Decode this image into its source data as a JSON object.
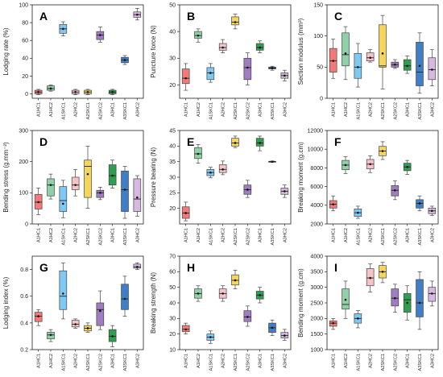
{
  "figure": {
    "categories": [
      "A1HC1",
      "A1HC2",
      "A1SKC1",
      "A2HC2",
      "A2SKC1",
      "A2SKC2",
      "A3HC1",
      "A3SKC1",
      "A3HC2"
    ],
    "colors": [
      "#f47a7a",
      "#8fd1a6",
      "#7fcaf5",
      "#f6c3c8",
      "#f5d65a",
      "#a07cc0",
      "#2f9e4f",
      "#3f7fc8",
      "#d7b8e0"
    ]
  },
  "chart_data": [
    {
      "panel": "A",
      "type": "box",
      "ylabel": "Lodging rate (%)",
      "ylim": [
        -5,
        100
      ],
      "yticks": [
        0,
        20,
        40,
        60,
        80,
        100
      ],
      "boxes": [
        {
          "min": -1,
          "q1": 0,
          "median": 2,
          "q3": 4,
          "max": 5,
          "mean": 2
        },
        {
          "min": 3,
          "q1": 4,
          "median": 6,
          "q3": 9,
          "max": 10,
          "mean": 6
        },
        {
          "min": 65,
          "q1": 68,
          "median": 73,
          "q3": 78,
          "max": 81,
          "mean": 73
        },
        {
          "min": -1,
          "q1": 0,
          "median": 2,
          "q3": 4,
          "max": 5,
          "mean": 2
        },
        {
          "min": -1,
          "q1": 0,
          "median": 2,
          "q3": 4,
          "max": 5,
          "mean": 2
        },
        {
          "min": 58,
          "q1": 61,
          "median": 66,
          "q3": 70,
          "max": 75,
          "mean": 66
        },
        {
          "min": -1,
          "q1": 0,
          "median": 2,
          "q3": 4,
          "max": 5,
          "mean": 2
        },
        {
          "min": 33,
          "q1": 35,
          "median": 38,
          "q3": 41,
          "max": 43,
          "mean": 38
        },
        {
          "min": 83,
          "q1": 86,
          "median": 89,
          "q3": 92,
          "max": 96,
          "mean": 89
        }
      ]
    },
    {
      "panel": "B",
      "type": "box",
      "ylabel": "Puncture force (N)",
      "ylim": [
        15,
        50
      ],
      "yticks": [
        20,
        30,
        40,
        50
      ],
      "boxes": [
        {
          "min": 18,
          "q1": 20.5,
          "median": 22.5,
          "q3": 26,
          "max": 28,
          "mean": 22.5
        },
        {
          "min": 36,
          "q1": 37.5,
          "median": 38.5,
          "q3": 40,
          "max": 41,
          "mean": 38.5
        },
        {
          "min": 21,
          "q1": 22,
          "median": 24.5,
          "q3": 26.5,
          "max": 28,
          "mean": 24.5
        },
        {
          "min": 32,
          "q1": 33,
          "median": 34,
          "q3": 35.5,
          "max": 37,
          "mean": 34
        },
        {
          "min": 41,
          "q1": 42.5,
          "median": 43.5,
          "q3": 45.5,
          "max": 46.5,
          "mean": 43.5
        },
        {
          "min": 20,
          "q1": 22,
          "median": 26.5,
          "q3": 30,
          "max": 32,
          "mean": 26.5
        },
        {
          "min": 32,
          "q1": 33,
          "median": 34,
          "q3": 35.5,
          "max": 36.5,
          "mean": 34
        },
        {
          "min": 25.5,
          "q1": 26,
          "median": 26.3,
          "q3": 26.7,
          "max": 27,
          "mean": 26.3
        },
        {
          "min": 21.5,
          "q1": 22.5,
          "median": 23.5,
          "q3": 24.5,
          "max": 25.5,
          "mean": 23.5
        }
      ]
    },
    {
      "panel": "C",
      "type": "box",
      "ylabel": "Section modulus (mm³)",
      "ylim": [
        0,
        150
      ],
      "yticks": [
        0,
        50,
        100,
        150
      ],
      "boxes": [
        {
          "min": 32,
          "q1": 42,
          "median": 60,
          "q3": 80,
          "max": 95,
          "mean": 60
        },
        {
          "min": 30,
          "q1": 52,
          "median": 70,
          "q3": 105,
          "max": 115,
          "mean": 72
        },
        {
          "min": 18,
          "q1": 32,
          "median": 50,
          "q3": 72,
          "max": 88,
          "mean": 50
        },
        {
          "min": 58,
          "q1": 60,
          "median": 65,
          "q3": 73,
          "max": 78,
          "mean": 65
        },
        {
          "min": 15,
          "q1": 50,
          "median": 52,
          "q3": 118,
          "max": 133,
          "mean": 72
        },
        {
          "min": 48,
          "q1": 50,
          "median": 54,
          "q3": 58,
          "max": 62,
          "mean": 54
        },
        {
          "min": 40,
          "q1": 45,
          "median": 52,
          "q3": 62,
          "max": 68,
          "mean": 52
        },
        {
          "min": 8,
          "q1": 20,
          "median": 42,
          "q3": 90,
          "max": 105,
          "mean": 52
        },
        {
          "min": 20,
          "q1": 30,
          "median": 46,
          "q3": 65,
          "max": 78,
          "mean": 46
        }
      ]
    },
    {
      "panel": "D",
      "type": "box",
      "ylabel": "Bending stress (g.mm⁻²)",
      "ylim": [
        0,
        300
      ],
      "yticks": [
        0,
        100,
        200,
        300
      ],
      "boxes": [
        {
          "min": 30,
          "q1": 48,
          "median": 70,
          "q3": 95,
          "max": 115,
          "mean": 70
        },
        {
          "min": 80,
          "q1": 90,
          "median": 125,
          "q3": 145,
          "max": 160,
          "mean": 125
        },
        {
          "min": 20,
          "q1": 40,
          "median": 75,
          "q3": 120,
          "max": 140,
          "mean": 65
        },
        {
          "min": 90,
          "q1": 110,
          "median": 125,
          "q3": 150,
          "max": 175,
          "mean": 125
        },
        {
          "min": 50,
          "q1": 85,
          "median": 185,
          "q3": 205,
          "max": 250,
          "mean": 160
        },
        {
          "min": 78,
          "q1": 85,
          "median": 100,
          "q3": 108,
          "max": 118,
          "mean": 100
        },
        {
          "min": 115,
          "q1": 125,
          "median": 155,
          "q3": 190,
          "max": 205,
          "mean": 155
        },
        {
          "min": 18,
          "q1": 40,
          "median": 110,
          "q3": 170,
          "max": 185,
          "mean": 110
        },
        {
          "min": 25,
          "q1": 40,
          "median": 80,
          "q3": 145,
          "max": 155,
          "mean": 85
        }
      ]
    },
    {
      "panel": "E",
      "type": "box",
      "ylabel": "Pressure bearing (N)",
      "ylim": [
        15,
        45
      ],
      "yticks": [
        20,
        25,
        30,
        35,
        40,
        45
      ],
      "boxes": [
        {
          "min": 16,
          "q1": 16.8,
          "median": 18.5,
          "q3": 20.5,
          "max": 22,
          "mean": 18.5
        },
        {
          "min": 34.5,
          "q1": 36,
          "median": 37.5,
          "q3": 39.5,
          "max": 40.5,
          "mean": 37.5
        },
        {
          "min": 29.8,
          "q1": 30.5,
          "median": 31.5,
          "q3": 32.5,
          "max": 33.2,
          "mean": 31.5
        },
        {
          "min": 30.8,
          "q1": 31.5,
          "median": 32.5,
          "q3": 34,
          "max": 35.2,
          "mean": 32.5
        },
        {
          "min": 39.5,
          "q1": 40,
          "median": 41,
          "q3": 42.5,
          "max": 43.2,
          "mean": 41
        },
        {
          "min": 23.5,
          "q1": 24.5,
          "median": 26,
          "q3": 27.5,
          "max": 29,
          "mean": 26
        },
        {
          "min": 38.5,
          "q1": 40,
          "median": 41,
          "q3": 42.5,
          "max": 43.2,
          "mean": 41
        },
        {
          "min": 34.8,
          "q1": 34.9,
          "median": 35,
          "q3": 35.1,
          "max": 35.2,
          "mean": 35
        },
        {
          "min": 23.5,
          "q1": 24.5,
          "median": 25.5,
          "q3": 26.5,
          "max": 27.5,
          "mean": 25.5
        }
      ]
    },
    {
      "panel": "F",
      "type": "box",
      "ylabel": "Breaking moment (g.cm)",
      "ylim": [
        2000,
        12000
      ],
      "yticks": [
        2000,
        4000,
        6000,
        8000,
        10000,
        12000
      ],
      "boxes": [
        {
          "min": 3400,
          "q1": 3700,
          "median": 4100,
          "q3": 4500,
          "max": 5000,
          "mean": 4100
        },
        {
          "min": 7400,
          "q1": 7800,
          "median": 8300,
          "q3": 8800,
          "max": 9200,
          "mean": 8300
        },
        {
          "min": 2600,
          "q1": 2800,
          "median": 3200,
          "q3": 3600,
          "max": 3900,
          "mean": 3200
        },
        {
          "min": 7500,
          "q1": 7900,
          "median": 8400,
          "q3": 8900,
          "max": 9300,
          "mean": 8400
        },
        {
          "min": 8900,
          "q1": 9300,
          "median": 9800,
          "q3": 10300,
          "max": 10800,
          "mean": 9800
        },
        {
          "min": 4600,
          "q1": 5000,
          "median": 5600,
          "q3": 6100,
          "max": 6600,
          "mean": 5600
        },
        {
          "min": 7300,
          "q1": 7700,
          "median": 8100,
          "q3": 8500,
          "max": 8800,
          "mean": 8100
        },
        {
          "min": 3400,
          "q1": 3700,
          "median": 4200,
          "q3": 4600,
          "max": 5000,
          "mean": 4200
        },
        {
          "min": 2900,
          "q1": 3100,
          "median": 3400,
          "q3": 3700,
          "max": 3900,
          "mean": 3400
        }
      ]
    },
    {
      "panel": "G",
      "type": "box",
      "ylabel": "Lodging index (%)",
      "ylim": [
        0.2,
        0.9
      ],
      "yticks": [
        0.2,
        0.4,
        0.6,
        0.8
      ],
      "boxes": [
        {
          "min": 0.38,
          "q1": 0.41,
          "median": 0.45,
          "q3": 0.48,
          "max": 0.5,
          "mean": 0.45
        },
        {
          "min": 0.26,
          "q1": 0.28,
          "median": 0.31,
          "q3": 0.33,
          "max": 0.35,
          "mean": 0.31
        },
        {
          "min": 0.43,
          "q1": 0.5,
          "median": 0.6,
          "q3": 0.79,
          "max": 0.85,
          "mean": 0.62
        },
        {
          "min": 0.36,
          "q1": 0.37,
          "median": 0.39,
          "q3": 0.42,
          "max": 0.43,
          "mean": 0.39
        },
        {
          "min": 0.33,
          "q1": 0.34,
          "median": 0.36,
          "q3": 0.38,
          "max": 0.4,
          "mean": 0.36
        },
        {
          "min": 0.35,
          "q1": 0.38,
          "median": 0.5,
          "q3": 0.55,
          "max": 0.64,
          "mean": 0.49
        },
        {
          "min": 0.22,
          "q1": 0.26,
          "median": 0.3,
          "q3": 0.35,
          "max": 0.38,
          "mean": 0.3
        },
        {
          "min": 0.45,
          "q1": 0.5,
          "median": 0.58,
          "q3": 0.69,
          "max": 0.75,
          "mean": 0.58
        },
        {
          "min": 0.8,
          "q1": 0.81,
          "median": 0.82,
          "q3": 0.84,
          "max": 0.85,
          "mean": 0.82
        }
      ]
    },
    {
      "panel": "H",
      "type": "box",
      "ylabel": "Breaking strength (N)",
      "ylim": [
        10,
        70
      ],
      "yticks": [
        10,
        20,
        30,
        40,
        50,
        60,
        70
      ],
      "boxes": [
        {
          "min": 20,
          "q1": 21.5,
          "median": 23,
          "q3": 25.5,
          "max": 27,
          "mean": 23
        },
        {
          "min": 41,
          "q1": 43,
          "median": 46,
          "q3": 49,
          "max": 51,
          "mean": 46
        },
        {
          "min": 14,
          "q1": 16,
          "median": 18,
          "q3": 20,
          "max": 22,
          "mean": 18
        },
        {
          "min": 41,
          "q1": 43,
          "median": 46,
          "q3": 49,
          "max": 51,
          "mean": 46
        },
        {
          "min": 49,
          "q1": 51.5,
          "median": 54.5,
          "q3": 58,
          "max": 61,
          "mean": 54.5
        },
        {
          "min": 25,
          "q1": 28,
          "median": 31,
          "q3": 35,
          "max": 38,
          "mean": 31
        },
        {
          "min": 40,
          "q1": 42.5,
          "median": 45,
          "q3": 47.5,
          "max": 50,
          "mean": 45
        },
        {
          "min": 19,
          "q1": 21,
          "median": 24,
          "q3": 27,
          "max": 29,
          "mean": 24
        },
        {
          "min": 16,
          "q1": 17.5,
          "median": 19,
          "q3": 21,
          "max": 23,
          "mean": 19
        }
      ]
    },
    {
      "panel": "I",
      "type": "box",
      "ylabel": "Bending moment (g.cm)",
      "ylim": [
        1000,
        4000
      ],
      "yticks": [
        1000,
        1500,
        2000,
        2500,
        3000,
        3500,
        4000
      ],
      "boxes": [
        {
          "min": 1650,
          "q1": 1750,
          "median": 1850,
          "q3": 1920,
          "max": 2000,
          "mean": 1850
        },
        {
          "min": 2000,
          "q1": 2300,
          "median": 2450,
          "q3": 2950,
          "max": 3200,
          "mean": 2600
        },
        {
          "min": 1700,
          "q1": 1850,
          "median": 2000,
          "q3": 2150,
          "max": 2250,
          "mean": 2000
        },
        {
          "min": 2850,
          "q1": 3050,
          "median": 3300,
          "q3": 3600,
          "max": 3750,
          "mean": 3300
        },
        {
          "min": 3150,
          "q1": 3300,
          "median": 3500,
          "q3": 3700,
          "max": 3800,
          "mean": 3500
        },
        {
          "min": 2200,
          "q1": 2400,
          "median": 2650,
          "q3": 2950,
          "max": 3100,
          "mean": 2650
        },
        {
          "min": 1950,
          "q1": 2200,
          "median": 2600,
          "q3": 2800,
          "max": 3050,
          "mean": 2500
        },
        {
          "min": 1650,
          "q1": 2050,
          "median": 2500,
          "q3": 3250,
          "max": 3500,
          "mean": 2500
        },
        {
          "min": 2400,
          "q1": 2550,
          "median": 2800,
          "q3": 3000,
          "max": 3200,
          "mean": 2800
        }
      ]
    }
  ]
}
